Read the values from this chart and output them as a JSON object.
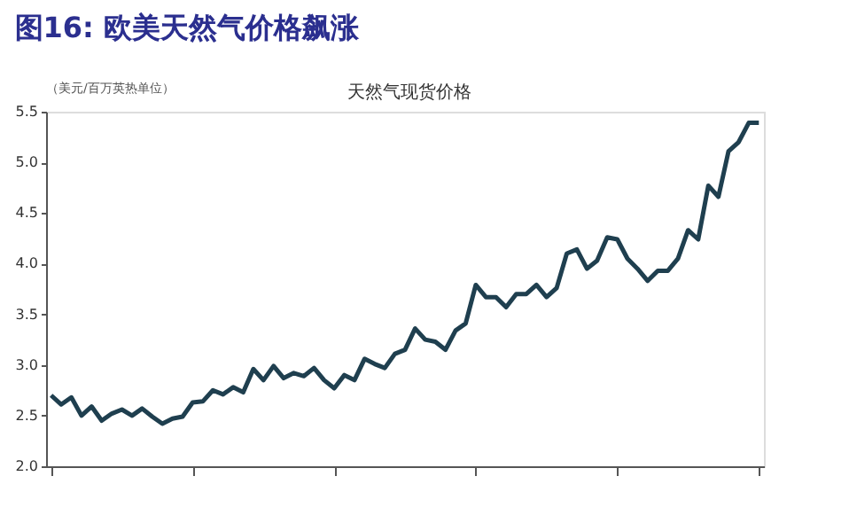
{
  "chart_data": {
    "type": "line",
    "title": "图16:  欧美天然气价格飙涨",
    "subtitle": "天然气现货价格",
    "ylabel": "（美元/百万英热单位）",
    "categories": [
      null,
      null,
      null,
      null,
      null,
      null,
      null,
      null,
      null,
      null,
      null,
      null,
      null,
      null,
      null,
      null,
      null,
      null,
      null,
      null,
      null,
      null,
      null,
      null,
      null,
      null,
      null,
      null,
      null,
      null,
      null,
      null,
      null,
      null,
      null,
      null,
      null,
      null,
      null,
      null,
      null,
      null,
      null,
      null,
      null,
      null,
      null,
      null,
      null,
      null,
      null,
      null,
      null,
      null,
      null,
      null,
      null,
      null,
      null,
      null,
      null,
      null,
      null,
      null,
      null,
      null,
      null,
      null,
      null,
      null,
      null
    ],
    "series": [
      {
        "color": "#1f3f4f",
        "values": [
          2.7,
          2.61,
          2.68,
          2.5,
          2.59,
          2.45,
          2.52,
          2.56,
          2.5,
          2.57,
          2.49,
          2.42,
          2.47,
          2.49,
          2.63,
          2.64,
          2.75,
          2.71,
          2.78,
          2.73,
          2.96,
          2.85,
          2.99,
          2.87,
          2.92,
          2.89,
          2.97,
          2.85,
          2.77,
          2.9,
          2.85,
          3.06,
          3.01,
          2.97,
          3.11,
          3.15,
          3.36,
          3.25,
          3.23,
          3.15,
          3.34,
          3.41,
          3.79,
          3.67,
          3.67,
          3.57,
          3.7,
          3.7,
          3.79,
          3.67,
          3.76,
          4.1,
          4.14,
          3.95,
          4.03,
          4.26,
          4.24,
          4.05,
          3.95,
          3.83,
          3.93,
          3.93,
          4.05,
          4.33,
          4.24,
          4.77,
          4.66,
          5.11,
          5.2,
          5.39,
          5.39
        ]
      }
    ],
    "ylim": [
      2.0,
      5.5
    ],
    "yticks": [
      {
        "value": 2.0,
        "label": "2.0"
      },
      {
        "value": 2.5,
        "label": "2.5"
      },
      {
        "value": 3.0,
        "label": "3.0"
      },
      {
        "value": 3.5,
        "label": "3.5"
      },
      {
        "value": 4.0,
        "label": "4.0"
      },
      {
        "value": 4.5,
        "label": "4.5"
      },
      {
        "value": 5.0,
        "label": "5.0"
      },
      {
        "value": 5.5,
        "label": "5.5"
      }
    ],
    "grid": false,
    "tick_labels": "y",
    "marker": "none",
    "line_style": "solid"
  }
}
